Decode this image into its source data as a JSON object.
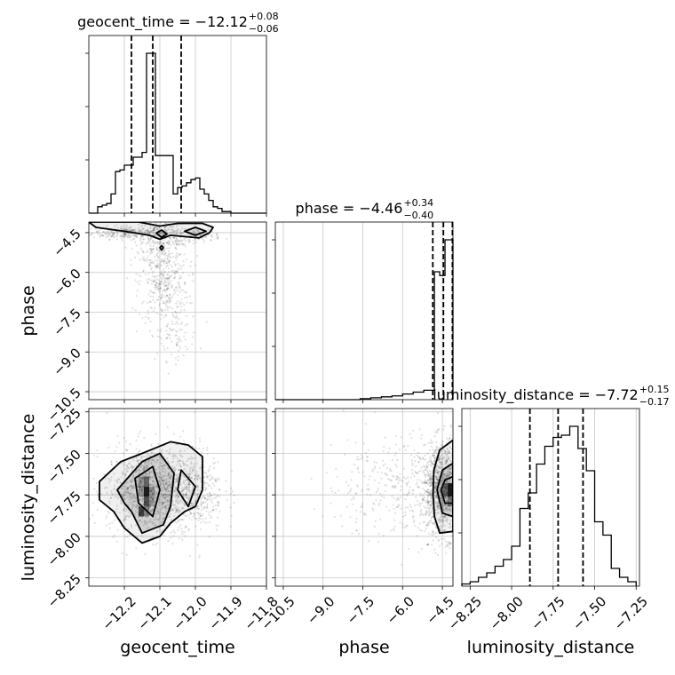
{
  "chart_data": {
    "type": "corner",
    "parameters": [
      "geocent_time",
      "phase",
      "luminosity_distance"
    ],
    "axes": {
      "geocent_time": {
        "label": "geocent_time",
        "range": [
          -12.3,
          -11.8
        ],
        "ticks": [
          -12.2,
          -12.1,
          -12.0,
          -11.9,
          -11.8
        ],
        "tick_labels": [
          "−12.2",
          "−12.1",
          "−12.0",
          "−11.9",
          "−11.8"
        ]
      },
      "phase": {
        "label": "phase",
        "range": [
          -10.8,
          -4.1
        ],
        "ticks": [
          -10.5,
          -9.0,
          -7.5,
          -6.0,
          -4.5
        ],
        "tick_labels": [
          "−10.5",
          "−9.0",
          "−7.5",
          "−6.0",
          "−4.5"
        ]
      },
      "luminosity_distance": {
        "label": "luminosity_distance",
        "range": [
          -8.3,
          -7.23
        ],
        "ticks": [
          -8.25,
          -8.0,
          -7.75,
          -7.5,
          -7.25
        ],
        "tick_labels": [
          "−8.25",
          "−8.00",
          "−7.75",
          "−7.50",
          "−7.25"
        ]
      }
    },
    "marginals": [
      {
        "param": "geocent_time",
        "title": {
          "text": "geocent_time = −12.12",
          "plus": "+0.08",
          "minus": "−0.06"
        },
        "quantiles": [
          -12.18,
          -12.12,
          -12.04
        ],
        "bins": [
          -12.3,
          -12.2875,
          -12.275,
          -12.2625,
          -12.25,
          -12.2375,
          -12.225,
          -12.2125,
          -12.2,
          -12.1875,
          -12.175,
          -12.1625,
          -12.15,
          -12.1375,
          -12.125,
          -12.1125,
          -12.1,
          -12.0875,
          -12.075,
          -12.0625,
          -12.05,
          -12.0375,
          -12.025,
          -12.0125,
          -12.0,
          -11.9875,
          -11.975,
          -11.9625,
          -11.95,
          -11.9375,
          -11.925,
          -11.9125,
          -11.9,
          -11.8875,
          -11.875,
          -11.8625,
          -11.85,
          -11.8375,
          -11.825,
          -11.8125,
          -11.8
        ],
        "counts": [
          0,
          0,
          4,
          5,
          6,
          12,
          26,
          27,
          30,
          30,
          35,
          35,
          38,
          100,
          100,
          36,
          36,
          36,
          36,
          12,
          16,
          17,
          19,
          21,
          22,
          15,
          12,
          8,
          4,
          3,
          1,
          1,
          0,
          0,
          0,
          0,
          0,
          0,
          0,
          0
        ]
      },
      {
        "param": "phase",
        "title": {
          "text": "phase = −4.46",
          "plus": "+0.34",
          "minus": "−0.40"
        },
        "quantiles": [
          -4.86,
          -4.46,
          -4.12
        ],
        "bins": [
          -10.8,
          -10.4,
          -10.0,
          -9.6,
          -9.2,
          -8.8,
          -8.4,
          -8.0,
          -7.6,
          -7.2,
          -6.8,
          -6.4,
          -6.0,
          -5.6,
          -5.2,
          -4.8,
          -4.6,
          -4.4,
          -4.2,
          -4.0
        ],
        "counts": [
          0,
          0,
          0,
          0,
          0,
          0,
          0,
          0,
          0.5,
          1,
          1.5,
          2,
          3,
          4,
          5,
          68,
          66,
          85,
          85
        ]
      },
      {
        "param": "luminosity_distance",
        "title": {
          "text": "luminosity_distance = −7.72",
          "plus": "+0.15",
          "minus": "−0.17"
        },
        "quantiles": [
          -7.89,
          -7.72,
          -7.57
        ],
        "bins": [
          -8.3,
          -8.25,
          -8.2,
          -8.15,
          -8.1,
          -8.05,
          -8.0,
          -7.95,
          -7.9,
          -7.85,
          -7.8,
          -7.75,
          -7.7,
          -7.65,
          -7.6,
          -7.55,
          -7.5,
          -7.45,
          -7.4,
          -7.35,
          -7.3,
          -7.25
        ],
        "counts": [
          1,
          2,
          4,
          6,
          9,
          12,
          18,
          35,
          42,
          55,
          63,
          67,
          68,
          72,
          62,
          52,
          29,
          23,
          8,
          4,
          2
        ]
      }
    ],
    "scatter_panels": [
      {
        "x": "geocent_time",
        "y": "phase",
        "density_cores": [
          {
            "center": [
              -12.19,
              -4.5
            ],
            "spread": [
              0.05,
              0.12
            ],
            "count": 250
          },
          {
            "center": [
              -12.09,
              -4.7
            ],
            "spread": [
              0.04,
              0.4
            ],
            "count": 300
          },
          {
            "center": [
              -12.09,
              -6.4
            ],
            "spread": [
              0.035,
              0.8
            ],
            "count": 380
          },
          {
            "center": [
              -12.06,
              -8.4
            ],
            "spread": [
              0.035,
              0.45
            ],
            "count": 80
          },
          {
            "center": [
              -11.99,
              -4.6
            ],
            "spread": [
              0.03,
              0.12
            ],
            "count": 100
          }
        ],
        "contours": [
          [
            [
              -12.3,
              -4.1
            ],
            [
              -12.28,
              -4.3
            ],
            [
              -12.2,
              -4.45
            ],
            [
              -12.13,
              -4.6
            ],
            [
              -12.1,
              -4.75
            ],
            [
              -12.07,
              -4.6
            ],
            [
              -11.99,
              -4.7
            ],
            [
              -11.96,
              -4.5
            ],
            [
              -11.95,
              -4.3
            ],
            [
              -11.98,
              -4.15
            ],
            [
              -12.05,
              -4.15
            ],
            [
              -12.1,
              -4.25
            ],
            [
              -12.16,
              -4.1
            ]
          ],
          [
            [
              -12.11,
              -4.52
            ],
            [
              -12.095,
              -4.68
            ],
            [
              -12.08,
              -4.55
            ],
            [
              -12.095,
              -4.4
            ]
          ],
          [
            [
              -12.1,
              -5.07
            ],
            [
              -12.095,
              -5.15
            ],
            [
              -12.09,
              -5.07
            ],
            [
              -12.095,
              -4.99
            ]
          ],
          [
            [
              -12.03,
              -4.45
            ],
            [
              -12.0,
              -4.6
            ],
            [
              -11.97,
              -4.45
            ],
            [
              -12.0,
              -4.3
            ]
          ]
        ]
      },
      {
        "x": "geocent_time",
        "y": "luminosity_distance",
        "density_cores": [
          {
            "center": [
              -12.13,
              -7.72
            ],
            "spread": [
              0.06,
              0.13
            ],
            "count": 1100
          },
          {
            "center": [
              -12.02,
              -7.72
            ],
            "spread": [
              0.05,
              0.13
            ],
            "count": 500
          }
        ],
        "contours": [
          [
            [
              -12.27,
              -7.67
            ],
            [
              -12.21,
              -7.55
            ],
            [
              -12.15,
              -7.5
            ],
            [
              -12.07,
              -7.43
            ],
            [
              -12.02,
              -7.45
            ],
            [
              -11.98,
              -7.52
            ],
            [
              -11.98,
              -7.72
            ],
            [
              -12.0,
              -7.82
            ],
            [
              -12.03,
              -7.85
            ],
            [
              -12.07,
              -7.92
            ],
            [
              -12.1,
              -8.0
            ],
            [
              -12.15,
              -8.04
            ],
            [
              -12.2,
              -7.95
            ],
            [
              -12.23,
              -7.85
            ],
            [
              -12.27,
              -7.78
            ]
          ],
          [
            [
              -12.22,
              -7.72
            ],
            [
              -12.15,
              -7.55
            ],
            [
              -12.1,
              -7.5
            ],
            [
              -12.06,
              -7.62
            ],
            [
              -12.07,
              -7.82
            ],
            [
              -12.09,
              -7.93
            ],
            [
              -12.15,
              -7.98
            ],
            [
              -12.18,
              -7.85
            ],
            [
              -12.2,
              -7.8
            ]
          ],
          [
            [
              -12.17,
              -7.65
            ],
            [
              -12.12,
              -7.58
            ],
            [
              -12.1,
              -7.72
            ],
            [
              -12.12,
              -7.88
            ],
            [
              -12.16,
              -7.8
            ]
          ],
          [
            [
              -12.04,
              -7.6
            ],
            [
              -12.0,
              -7.7
            ],
            [
              -12.02,
              -7.82
            ],
            [
              -12.05,
              -7.72
            ]
          ]
        ],
        "heatmap_cells": [
          {
            "x": [
              -12.145,
              -12.13
            ],
            "y": [
              -7.7,
              -7.64
            ],
            "level": 0.6
          },
          {
            "x": [
              -12.145,
              -12.13
            ],
            "y": [
              -7.76,
              -7.7
            ],
            "level": 1.0
          },
          {
            "x": [
              -12.145,
              -12.13
            ],
            "y": [
              -7.82,
              -7.76
            ],
            "level": 0.7
          },
          {
            "x": [
              -12.145,
              -12.13
            ],
            "y": [
              -7.88,
              -7.82
            ],
            "level": 0.45
          },
          {
            "x": [
              -12.16,
              -12.145
            ],
            "y": [
              -7.76,
              -7.64
            ],
            "level": 0.35
          },
          {
            "x": [
              -12.13,
              -12.115
            ],
            "y": [
              -7.82,
              -7.7
            ],
            "level": 0.3
          },
          {
            "x": [
              -12.16,
              -12.145
            ],
            "y": [
              -7.88,
              -7.82
            ],
            "level": 0.8
          }
        ]
      },
      {
        "x": "phase",
        "y": "luminosity_distance",
        "density_cores": [
          {
            "center": [
              -4.5,
              -7.72
            ],
            "spread": [
              0.4,
              0.14
            ],
            "count": 1100
          },
          {
            "center": [
              -6.3,
              -7.7
            ],
            "spread": [
              1.3,
              0.16
            ],
            "count": 350
          }
        ],
        "contours": [
          [
            [
              -4.1,
              -7.42
            ],
            [
              -4.6,
              -7.48
            ],
            [
              -4.82,
              -7.6
            ],
            [
              -4.85,
              -7.75
            ],
            [
              -4.8,
              -7.88
            ],
            [
              -4.6,
              -7.98
            ],
            [
              -4.1,
              -7.97
            ]
          ],
          [
            [
              -4.1,
              -7.56
            ],
            [
              -4.5,
              -7.6
            ],
            [
              -4.7,
              -7.72
            ],
            [
              -4.5,
              -7.86
            ],
            [
              -4.1,
              -7.88
            ]
          ],
          [
            [
              -4.1,
              -7.64
            ],
            [
              -4.4,
              -7.66
            ],
            [
              -4.55,
              -7.72
            ],
            [
              -4.4,
              -7.8
            ],
            [
              -4.1,
              -7.8
            ]
          ]
        ],
        "heatmap_cells": [
          {
            "x": [
              -4.3,
              -4.1
            ],
            "y": [
              -7.76,
              -7.68
            ],
            "level": 1.0
          },
          {
            "x": [
              -4.5,
              -4.3
            ],
            "y": [
              -7.76,
              -7.68
            ],
            "level": 0.55
          },
          {
            "x": [
              -4.3,
              -4.1
            ],
            "y": [
              -7.82,
              -7.76
            ],
            "level": 0.5
          }
        ]
      }
    ]
  }
}
